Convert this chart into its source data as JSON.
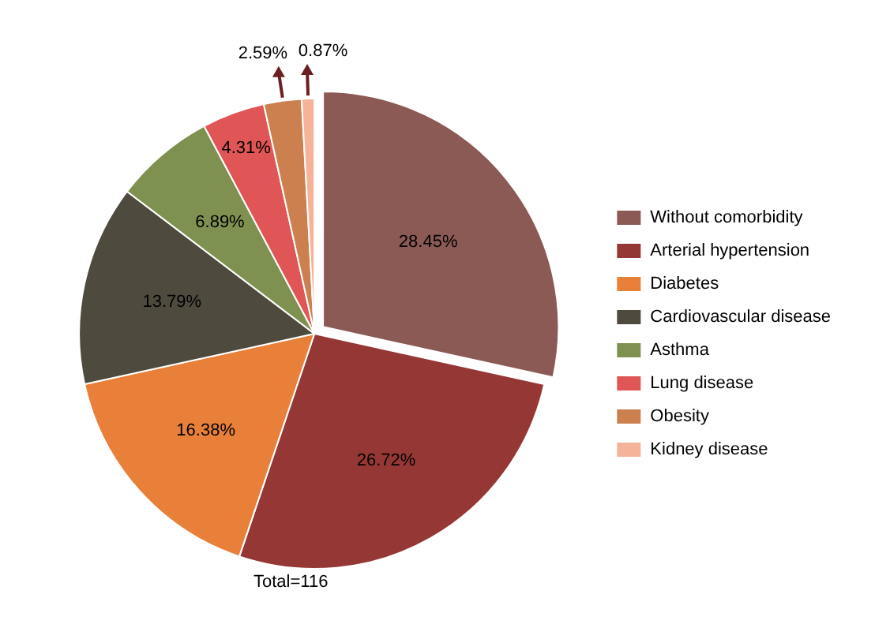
{
  "chart_data": {
    "type": "pie",
    "categories": [
      "Without comorbidity",
      "Arterial hypertension",
      "Diabetes",
      "Cardiovascular disease",
      "Asthma",
      "Lung disease",
      "Obesity",
      "Kidney disease"
    ],
    "values": [
      28.45,
      26.72,
      16.38,
      13.79,
      6.89,
      4.31,
      2.59,
      0.87
    ],
    "colors": [
      "#8b5a55",
      "#953835",
      "#e8803a",
      "#4f4a3e",
      "#7f9150",
      "#e05555",
      "#cc7f4f",
      "#f5b49a"
    ],
    "value_labels": [
      "28.45%",
      "26.72%",
      "16.38%",
      "13.79%",
      "6.89%",
      "4.31%",
      "2.59%",
      "0.87%"
    ],
    "annotations": [
      "Total=116"
    ],
    "legend": "right"
  }
}
